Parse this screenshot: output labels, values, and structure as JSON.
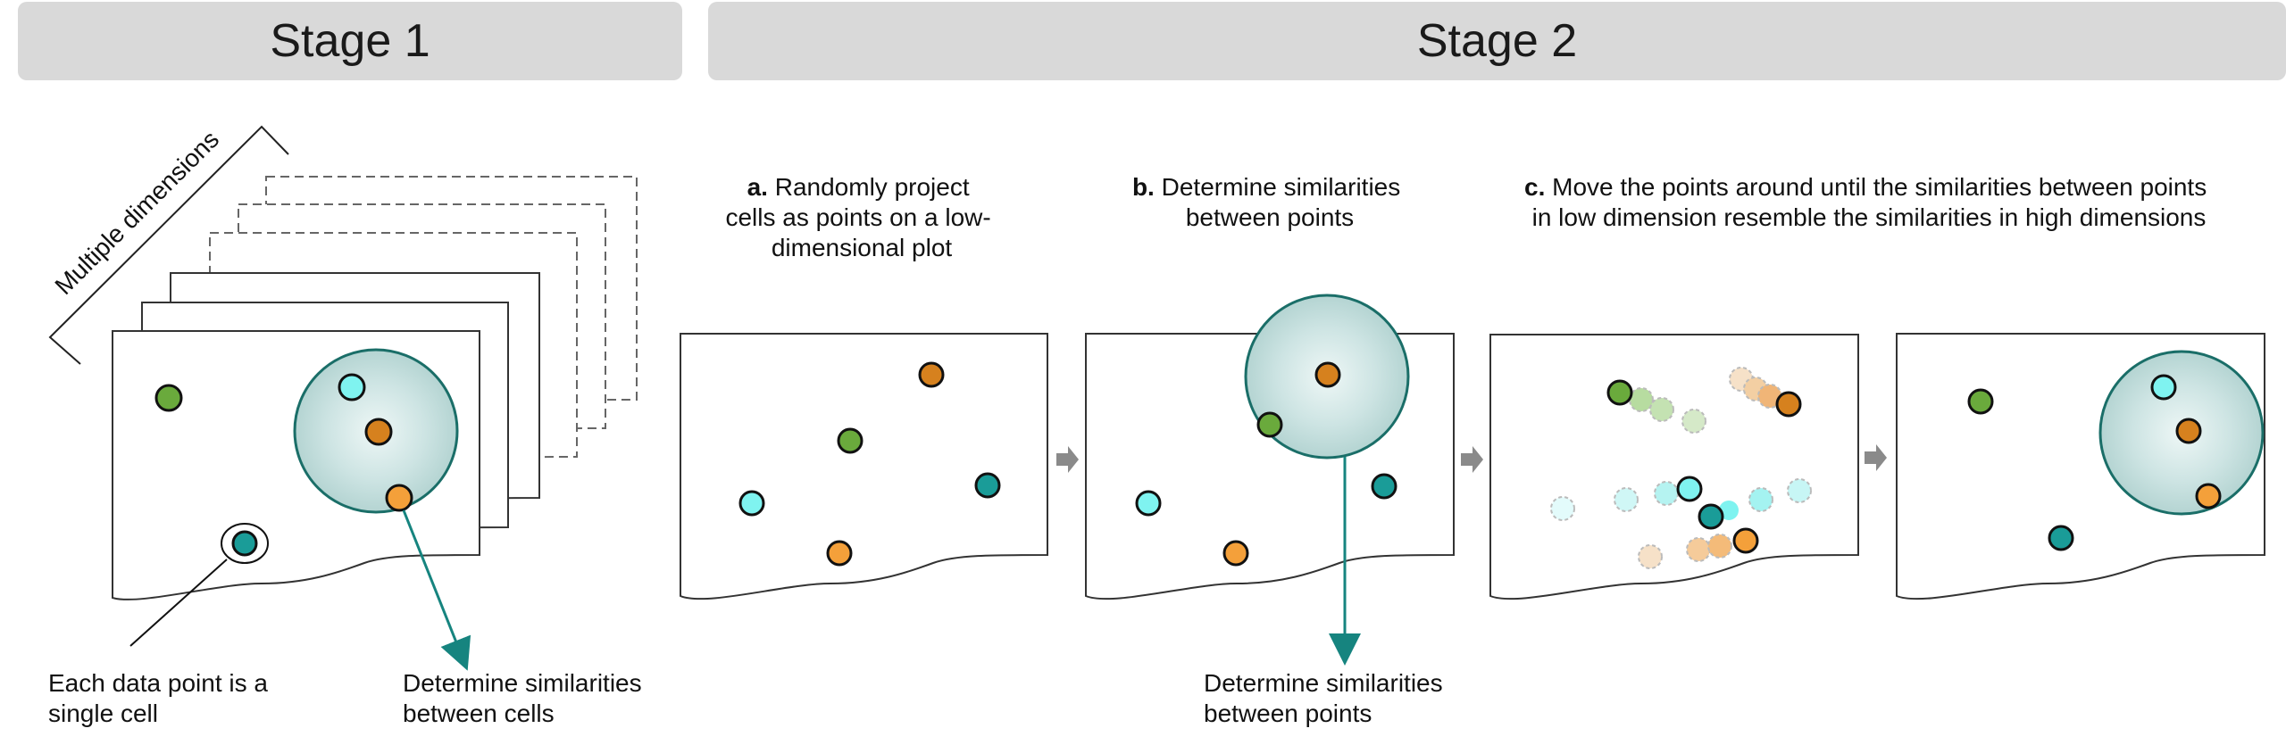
{
  "stages": {
    "stage1_title": "Stage 1",
    "stage2_title": "Stage 2"
  },
  "stage1": {
    "dimension_label": "Multiple dimensions",
    "annotation_point": [
      "Each data point is a",
      "single cell"
    ],
    "annotation_similarity": [
      "Determine similarities",
      "between cells"
    ]
  },
  "stage2": {
    "step_a": {
      "letter": "a.",
      "lines": [
        "Randomly project",
        "cells as points on a low-",
        "dimensional plot"
      ]
    },
    "step_b": {
      "letter": "b.",
      "lines": [
        "Determine similarities",
        "between points"
      ],
      "annotation": [
        "Determine similarities",
        "between points"
      ]
    },
    "step_c": {
      "letter": "c.",
      "lines": [
        "Move the points around until the similarities between points",
        "in low dimension resemble the similarities in high dimensions"
      ]
    }
  },
  "colors": {
    "green": "#6aaa3c",
    "cyan": "#7ff3f0",
    "brown": "#d6811e",
    "orange": "#f4a03a",
    "teal": "#1a9c98",
    "circle_edge": "#1a6e68",
    "arrow_teal": "#16847f",
    "arrow_gray": "#8a8a8a",
    "banner": "#d9d9d9"
  }
}
